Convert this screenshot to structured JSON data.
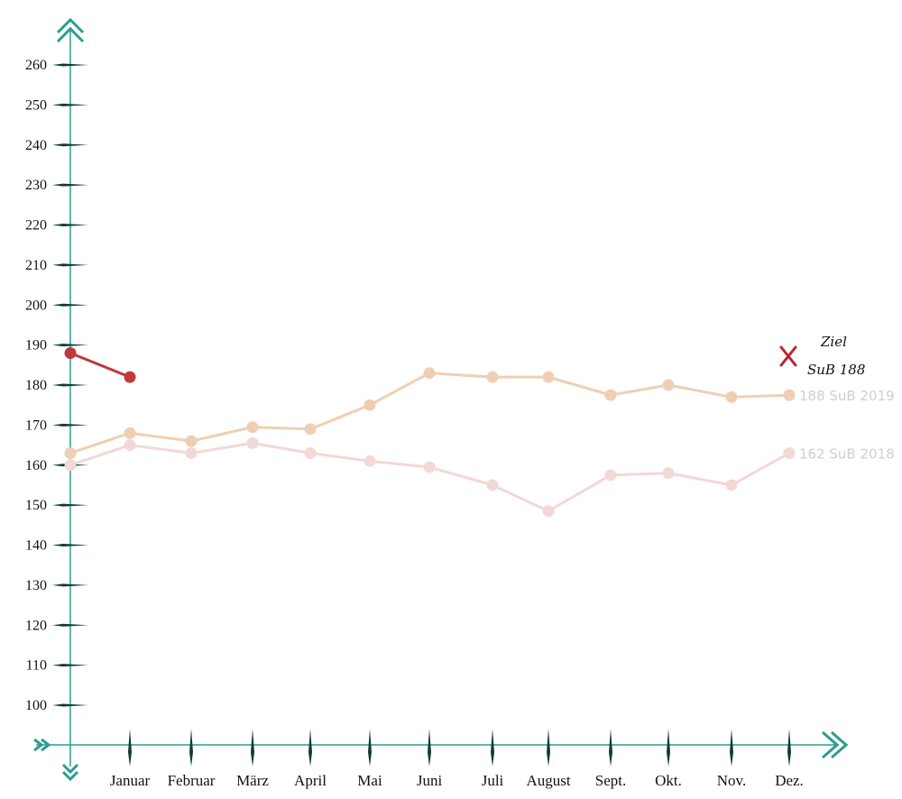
{
  "chart_data": {
    "type": "line",
    "categories": [
      "",
      "Januar",
      "Februar",
      "März",
      "April",
      "Mai",
      "Juni",
      "Juli",
      "August",
      "Sept.",
      "Okt.",
      "Nov.",
      "Dez."
    ],
    "y_ticks": [
      100,
      110,
      120,
      130,
      140,
      150,
      160,
      170,
      180,
      190,
      200,
      210,
      220,
      230,
      240,
      250,
      260
    ],
    "ylim": [
      100,
      260
    ],
    "grid": false,
    "series": [
      {
        "name": "188 SuB 2019",
        "color": "#efcfb3",
        "values": [
          163,
          168,
          166,
          169.5,
          169,
          175,
          183,
          182,
          182,
          177.5,
          180,
          177,
          177.5
        ]
      },
      {
        "name": "162 SuB 2018",
        "color": "#f2d8d6",
        "values": [
          160,
          165,
          163,
          165.5,
          163,
          161,
          159.5,
          155,
          148.5,
          157.5,
          158,
          155,
          163
        ]
      },
      {
        "name": "",
        "color": "#c0393b",
        "values": [
          188,
          182,
          null,
          null,
          null,
          null,
          null,
          null,
          null,
          null,
          null,
          null,
          null
        ]
      }
    ],
    "goal": {
      "line1": "Ziel",
      "line2": "SuB 188",
      "value": 188,
      "color": "#c0232c"
    },
    "colors": {
      "axis": "#2a9d8f",
      "tick_mark": "#0f3b3a"
    }
  }
}
